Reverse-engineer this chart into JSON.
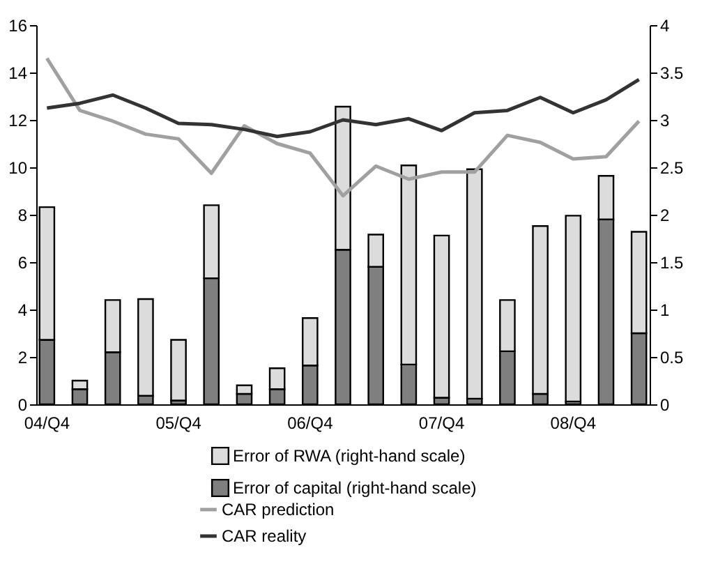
{
  "chart_data": {
    "type": "bar",
    "categories": [
      "04/Q4",
      null,
      null,
      null,
      "05/Q4",
      null,
      null,
      null,
      "06/Q4",
      null,
      null,
      null,
      "07/Q4",
      null,
      null,
      null,
      "08/Q4",
      null,
      null
    ],
    "stacked": true,
    "legend": "bottom",
    "ylim": [
      0,
      16
    ],
    "yticks": [
      0,
      2,
      4,
      6,
      8,
      10,
      12,
      14,
      16
    ],
    "y2lim": [
      0,
      4
    ],
    "y2ticks": [
      0,
      0.5,
      1,
      1.5,
      2,
      2.5,
      3,
      3.5,
      4
    ],
    "grid": false,
    "series": [
      {
        "name": "Error of capital (right-hand scale)",
        "axis": "y2",
        "color": "#7f7f7f",
        "values": [
          0.68,
          0.16,
          0.55,
          0.09,
          0.04,
          1.33,
          0.11,
          0.16,
          0.41,
          1.63,
          1.45,
          0.42,
          0.07,
          0.06,
          0.56,
          0.11,
          0.03,
          1.95,
          0.75
        ]
      },
      {
        "name": "Error of  RWA (right-hand scale)",
        "axis": "y2",
        "color": "#dcdcdc",
        "values": [
          1.4,
          0.09,
          0.55,
          1.02,
          0.64,
          0.77,
          0.09,
          0.22,
          0.5,
          1.51,
          0.34,
          2.1,
          1.71,
          2.42,
          0.54,
          1.77,
          1.96,
          0.46,
          1.07
        ]
      },
      {
        "name": "CAR prediction",
        "type": "line",
        "axis": "y",
        "color": "#a0a0a0",
        "values": [
          14.6,
          12.4,
          11.95,
          11.4,
          11.2,
          9.75,
          11.75,
          11.0,
          10.6,
          8.8,
          10.05,
          9.5,
          9.8,
          9.8,
          11.35,
          11.05,
          10.35,
          10.45,
          11.95
        ]
      },
      {
        "name": "CAR reality",
        "type": "line",
        "axis": "y",
        "color": "#333333",
        "values": [
          12.5,
          12.7,
          13.05,
          12.5,
          11.85,
          11.8,
          11.6,
          11.3,
          11.5,
          12.0,
          11.8,
          12.05,
          11.55,
          12.3,
          12.4,
          12.95,
          12.3,
          12.85,
          13.7
        ]
      }
    ]
  }
}
